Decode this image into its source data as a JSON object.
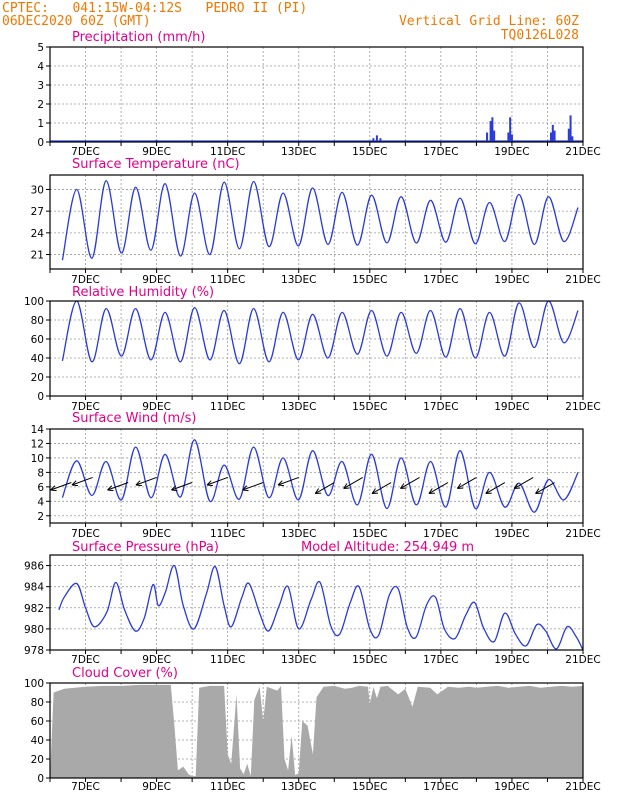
{
  "header": {
    "line1_left": "CPTEC:   041:15W-04:12S   PEDRO II (PI)",
    "line2_left": "06DEC2020 60Z (GMT)",
    "line1_right": "Vertical Grid Line: 60Z",
    "line2_right": "TQ0126L028",
    "model_altitude": "Model Altitude: 254.949 m"
  },
  "colors": {
    "header": "#f07800",
    "title": "#e0008c",
    "line": "#2a3bd9",
    "cloud": "#a9a9a9",
    "arrow": "#000000"
  },
  "chart_data": [
    {
      "type": "bar",
      "title": "Precipitation (mm/h)",
      "ylim": [
        0,
        5
      ],
      "yticks": [
        0,
        1,
        2,
        3,
        4,
        5
      ],
      "xticks": [
        "7DEC",
        "9DEC",
        "11DEC",
        "13DEC",
        "15DEC",
        "17DEC",
        "19DEC",
        "21DEC"
      ],
      "grid": true,
      "x": [
        9.0,
        9.3,
        15.1,
        15.2,
        15.3,
        18.3,
        18.4,
        18.45,
        18.5,
        18.9,
        18.95,
        19.0,
        20.1,
        20.15,
        20.2,
        20.6,
        20.65,
        20.7
      ],
      "values": [
        0.1,
        0.05,
        0.2,
        0.35,
        0.2,
        0.5,
        1.1,
        1.3,
        0.6,
        0.5,
        1.3,
        0.4,
        0.5,
        0.9,
        0.6,
        0.7,
        1.4,
        0.3
      ]
    },
    {
      "type": "line",
      "title": "Surface Temperature (nC)",
      "ylim": [
        19,
        32
      ],
      "yticks": [
        21,
        24,
        27,
        30
      ],
      "xticks": [
        "7DEC",
        "9DEC",
        "11DEC",
        "13DEC",
        "15DEC",
        "17DEC",
        "19DEC",
        "21DEC"
      ],
      "grid": true,
      "days_min": [
        20.2,
        20.5,
        21.2,
        21.6,
        20.8,
        21.0,
        21.8,
        22.1,
        22.2,
        22.4,
        22.3,
        22.6,
        22.6,
        22.7,
        22.5,
        22.8,
        22.4,
        22.8
      ],
      "days_max": [
        30.0,
        31.2,
        30.3,
        30.8,
        29.5,
        31.0,
        31.1,
        29.5,
        30.2,
        29.6,
        29.2,
        29.0,
        28.5,
        28.8,
        28.2,
        29.3,
        29.0,
        27.5
      ]
    },
    {
      "type": "line",
      "title": "Relative Humidity (%)",
      "ylim": [
        0,
        100
      ],
      "yticks": [
        0,
        20,
        40,
        60,
        80,
        100
      ],
      "xticks": [
        "7DEC",
        "9DEC",
        "11DEC",
        "13DEC",
        "15DEC",
        "17DEC",
        "19DEC",
        "21DEC"
      ],
      "grid": true,
      "days_min": [
        37,
        36,
        42,
        38,
        36,
        38,
        34,
        36,
        38,
        40,
        44,
        42,
        45,
        41,
        40,
        42,
        51,
        56
      ],
      "days_max": [
        100,
        92,
        92,
        88,
        93,
        90,
        92,
        88,
        86,
        88,
        90,
        88,
        90,
        92,
        88,
        98,
        100,
        90
      ]
    },
    {
      "type": "line",
      "title": "Surface Wind (m/s)",
      "ylim": [
        1,
        14
      ],
      "yticks": [
        2,
        4,
        6,
        8,
        10,
        12,
        14
      ],
      "xticks": [
        "7DEC",
        "9DEC",
        "11DEC",
        "13DEC",
        "15DEC",
        "17DEC",
        "19DEC",
        "21DEC"
      ],
      "grid": true,
      "days_min": [
        4.5,
        4.8,
        4.2,
        4.5,
        4.6,
        4.0,
        4.3,
        4.5,
        4.2,
        4.8,
        3.5,
        3.0,
        3.5,
        3.2,
        3.0,
        3.2,
        2.5,
        4.2
      ],
      "days_max": [
        9.6,
        9.5,
        11.5,
        10.5,
        12.5,
        9.0,
        11.5,
        10.0,
        11.0,
        9.5,
        10.5,
        10.0,
        9.5,
        11.0,
        8.0,
        6.5,
        7.0,
        8.0
      ],
      "arrow_x": [
        6.6,
        7.2,
        8.2,
        9.0,
        10.0,
        11.0,
        12.0,
        13.0,
        14.0,
        14.8,
        15.6,
        16.4,
        17.2,
        18.0,
        18.8,
        19.6,
        20.2
      ]
    },
    {
      "type": "line",
      "title": "Surface Pressure (hPa)",
      "ylim": [
        978,
        987
      ],
      "yticks": [
        978,
        980,
        982,
        984,
        986
      ],
      "xticks": [
        "7DEC",
        "9DEC",
        "11DEC",
        "13DEC",
        "15DEC",
        "17DEC",
        "19DEC",
        "21DEC"
      ],
      "grid": true,
      "points": [
        [
          6.25,
          981.8
        ],
        [
          6.4,
          983.0
        ],
        [
          6.75,
          984.3
        ],
        [
          7.0,
          982.0
        ],
        [
          7.25,
          980.2
        ],
        [
          7.6,
          981.6
        ],
        [
          7.85,
          984.4
        ],
        [
          8.1,
          981.8
        ],
        [
          8.4,
          979.8
        ],
        [
          8.65,
          981.0
        ],
        [
          8.9,
          984.2
        ],
        [
          9.05,
          982.2
        ],
        [
          9.25,
          983.5
        ],
        [
          9.5,
          986.0
        ],
        [
          9.75,
          982.2
        ],
        [
          10.05,
          980.0
        ],
        [
          10.4,
          983.3
        ],
        [
          10.65,
          985.9
        ],
        [
          10.9,
          982.2
        ],
        [
          11.1,
          980.2
        ],
        [
          11.4,
          983.0
        ],
        [
          11.6,
          984.3
        ],
        [
          11.9,
          981.5
        ],
        [
          12.15,
          979.8
        ],
        [
          12.45,
          982.2
        ],
        [
          12.7,
          984.0
        ],
        [
          13.0,
          980.0
        ],
        [
          13.35,
          982.8
        ],
        [
          13.6,
          984.4
        ],
        [
          13.9,
          980.3
        ],
        [
          14.15,
          979.5
        ],
        [
          14.45,
          982.5
        ],
        [
          14.7,
          984.0
        ],
        [
          15.0,
          980.0
        ],
        [
          15.25,
          979.4
        ],
        [
          15.55,
          983.2
        ],
        [
          15.8,
          983.8
        ],
        [
          16.05,
          980.2
        ],
        [
          16.3,
          979.2
        ],
        [
          16.6,
          982.3
        ],
        [
          16.85,
          983.0
        ],
        [
          17.1,
          980.0
        ],
        [
          17.4,
          979.1
        ],
        [
          17.7,
          981.3
        ],
        [
          17.95,
          982.5
        ],
        [
          18.2,
          980.1
        ],
        [
          18.5,
          978.8
        ],
        [
          18.8,
          981.5
        ],
        [
          19.1,
          979.5
        ],
        [
          19.4,
          978.4
        ],
        [
          19.7,
          980.4
        ],
        [
          19.95,
          979.8
        ],
        [
          20.25,
          978.1
        ],
        [
          20.55,
          980.2
        ],
        [
          20.8,
          979.3
        ],
        [
          21.0,
          978.0
        ]
      ]
    },
    {
      "type": "area",
      "title": "Cloud Cover (%)",
      "ylim": [
        0,
        100
      ],
      "yticks": [
        0,
        20,
        40,
        60,
        80,
        100
      ],
      "xticks": [
        "7DEC",
        "9DEC",
        "11DEC",
        "13DEC",
        "15DEC",
        "17DEC",
        "19DEC",
        "21DEC"
      ],
      "grid": true,
      "points": [
        [
          6.0,
          0
        ],
        [
          6.1,
          90
        ],
        [
          6.4,
          94
        ],
        [
          7.0,
          96
        ],
        [
          7.5,
          97
        ],
        [
          8.0,
          97
        ],
        [
          8.5,
          98
        ],
        [
          9.0,
          98
        ],
        [
          9.4,
          98
        ],
        [
          9.5,
          55
        ],
        [
          9.6,
          8
        ],
        [
          9.75,
          12
        ],
        [
          9.9,
          4
        ],
        [
          10.0,
          2
        ],
        [
          10.1,
          2
        ],
        [
          10.2,
          95
        ],
        [
          10.5,
          97
        ],
        [
          10.9,
          97
        ],
        [
          11.0,
          25
        ],
        [
          11.1,
          15
        ],
        [
          11.25,
          88
        ],
        [
          11.35,
          10
        ],
        [
          11.45,
          4
        ],
        [
          11.55,
          15
        ],
        [
          11.65,
          2
        ],
        [
          11.75,
          82
        ],
        [
          11.9,
          96
        ],
        [
          12.0,
          60
        ],
        [
          12.1,
          96
        ],
        [
          12.4,
          92
        ],
        [
          12.5,
          97
        ],
        [
          12.6,
          20
        ],
        [
          12.7,
          8
        ],
        [
          12.8,
          45
        ],
        [
          12.9,
          3
        ],
        [
          13.0,
          5
        ],
        [
          13.1,
          60
        ],
        [
          13.25,
          55
        ],
        [
          13.4,
          25
        ],
        [
          13.5,
          85
        ],
        [
          13.7,
          96
        ],
        [
          14.0,
          97
        ],
        [
          14.3,
          94
        ],
        [
          14.5,
          95
        ],
        [
          14.7,
          97
        ],
        [
          14.95,
          96
        ],
        [
          15.0,
          78
        ],
        [
          15.1,
          96
        ],
        [
          15.2,
          84
        ],
        [
          15.3,
          96
        ],
        [
          15.5,
          97
        ],
        [
          15.8,
          88
        ],
        [
          16.0,
          94
        ],
        [
          16.2,
          75
        ],
        [
          16.35,
          96
        ],
        [
          16.7,
          95
        ],
        [
          16.9,
          88
        ],
        [
          17.05,
          92
        ],
        [
          17.2,
          96
        ],
        [
          17.5,
          95
        ],
        [
          17.8,
          96
        ],
        [
          18.0,
          95
        ],
        [
          18.3,
          96
        ],
        [
          18.6,
          97
        ],
        [
          18.9,
          95
        ],
        [
          19.2,
          96
        ],
        [
          19.5,
          97
        ],
        [
          19.8,
          95
        ],
        [
          20.1,
          96
        ],
        [
          20.4,
          97
        ],
        [
          20.7,
          96
        ],
        [
          21.0,
          97
        ]
      ]
    }
  ]
}
